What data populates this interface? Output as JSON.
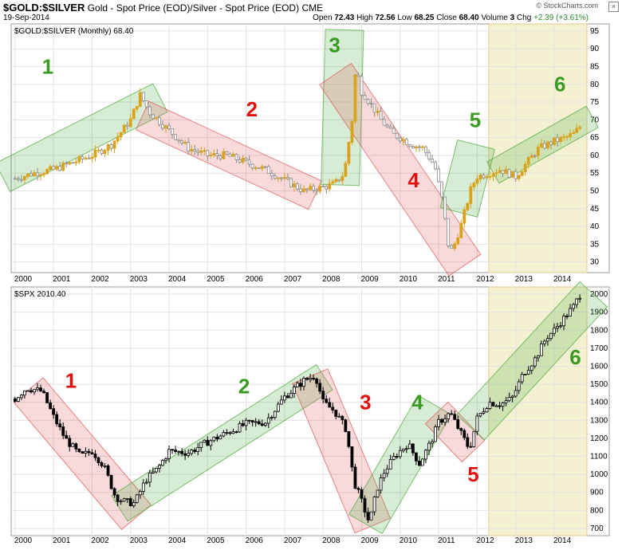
{
  "header": {
    "symbol": "$GOLD:$SILVER",
    "description": "Gold - Spot Price (EOD)/Silver - Spot Price (EOD)",
    "exchange": "CME",
    "date": "19-Sep-2014",
    "open_label": "Open",
    "open": "72.43",
    "high_label": "High",
    "high": "72.56",
    "low_label": "Low",
    "low": "68.25",
    "close_label": "Close",
    "close": "68.40",
    "volume_label": "Volume",
    "volume": "3",
    "chg_label": "Chg",
    "chg": "+2.39 (+3.61%)",
    "brand": "© StockCharts.com",
    "close_glyph": "×"
  },
  "colors": {
    "up_gold": "#d9a21a",
    "down_gray": "#8a8a8a",
    "up_black": "#000000",
    "green_box": "#4aa83a",
    "red_box": "#e05555",
    "highlight": "#f4f1d2",
    "label_green": "#3a9a22",
    "label_red": "#e01010"
  },
  "chart_data": [
    {
      "type": "candlestick",
      "title": "$GOLD:$SILVER (Monthly) 68.40",
      "x_ticks": [
        "2000",
        "2001",
        "2002",
        "2003",
        "2004",
        "2005",
        "2006",
        "2007",
        "2008",
        "2009",
        "2010",
        "2011",
        "2012",
        "2013",
        "2014"
      ],
      "y_ticks": [
        30,
        35,
        40,
        45,
        50,
        55,
        60,
        65,
        70,
        75,
        80,
        85,
        90,
        95
      ],
      "ylim": [
        27,
        97
      ],
      "xlim": [
        1999.9,
        2014.85
      ],
      "series_points": [
        [
          2000.0,
          53.5
        ],
        [
          2000.5,
          55
        ],
        [
          2001.0,
          56
        ],
        [
          2001.5,
          58
        ],
        [
          2002.0,
          60
        ],
        [
          2002.5,
          63
        ],
        [
          2003.0,
          70
        ],
        [
          2003.25,
          77
        ],
        [
          2003.5,
          72
        ],
        [
          2004.0,
          67
        ],
        [
          2004.5,
          62
        ],
        [
          2005.0,
          60
        ],
        [
          2005.5,
          60
        ],
        [
          2006.0,
          58
        ],
        [
          2006.5,
          56
        ],
        [
          2007.0,
          53
        ],
        [
          2007.5,
          50
        ],
        [
          2008.0,
          51
        ],
        [
          2008.3,
          52
        ],
        [
          2008.55,
          55
        ],
        [
          2008.75,
          70
        ],
        [
          2008.85,
          85
        ],
        [
          2009.0,
          78
        ],
        [
          2009.2,
          75
        ],
        [
          2009.5,
          70
        ],
        [
          2009.8,
          66
        ],
        [
          2010.0,
          65
        ],
        [
          2010.3,
          63
        ],
        [
          2010.6,
          62
        ],
        [
          2010.9,
          57
        ],
        [
          2011.1,
          47
        ],
        [
          2011.25,
          35
        ],
        [
          2011.35,
          33
        ],
        [
          2011.6,
          41
        ],
        [
          2011.85,
          51
        ],
        [
          2012.0,
          54
        ],
        [
          2012.3,
          55
        ],
        [
          2012.6,
          56
        ],
        [
          2013.0,
          54
        ],
        [
          2013.3,
          58
        ],
        [
          2013.6,
          62
        ],
        [
          2014.0,
          64
        ],
        [
          2014.3,
          65
        ],
        [
          2014.5,
          66
        ],
        [
          2014.7,
          68.4
        ]
      ],
      "channels": [
        {
          "label": "1",
          "color": "green",
          "from": [
            1999.9,
            55
          ],
          "to": [
            2003.55,
            75
          ],
          "width": 8,
          "label_at": [
            2000.7,
            83
          ]
        },
        {
          "label": "2",
          "color": "red",
          "from": [
            2003.55,
            70
          ],
          "to": [
            2007.55,
            50
          ],
          "width": 8,
          "label_at": [
            2006.0,
            71
          ]
        },
        {
          "label": "3",
          "color": "green",
          "from": [
            2008.45,
            54
          ],
          "to": [
            2008.55,
            93
          ],
          "width": 6,
          "label_at": [
            2008.15,
            89
          ]
        },
        {
          "label": "4",
          "color": "red",
          "from": [
            2008.5,
            80
          ],
          "to": [
            2011.5,
            32
          ],
          "width": 8,
          "label_at": [
            2010.2,
            51
          ]
        },
        {
          "label": "5",
          "color": "green",
          "from": [
            2011.55,
            45
          ],
          "to": [
            2011.95,
            62
          ],
          "width": 9,
          "label_at": [
            2011.8,
            68
          ]
        },
        {
          "label": "6",
          "color": "green",
          "from": [
            2012.55,
            56
          ],
          "to": [
            2014.85,
            70
          ],
          "width": 6,
          "label_at": [
            2014.0,
            78
          ]
        }
      ],
      "highlight_from": 2012.3
    },
    {
      "type": "candlestick",
      "title": "$SPX 2010.40",
      "x_ticks": [
        "2000",
        "2001",
        "2002",
        "2003",
        "2004",
        "2005",
        "2006",
        "2007",
        "2008",
        "2009",
        "2010",
        "2011",
        "2012",
        "2013",
        "2014"
      ],
      "y_ticks": [
        700,
        800,
        900,
        1000,
        1100,
        1200,
        1300,
        1400,
        1500,
        1600,
        1700,
        1800,
        1900,
        2000
      ],
      "ylim": [
        660,
        2040
      ],
      "xlim": [
        1999.9,
        2014.85
      ],
      "series_points": [
        [
          2000.0,
          1420
        ],
        [
          2000.3,
          1480
        ],
        [
          2000.7,
          1460
        ],
        [
          2001.0,
          1320
        ],
        [
          2001.3,
          1200
        ],
        [
          2001.7,
          1100
        ],
        [
          2002.0,
          1130
        ],
        [
          2002.3,
          1050
        ],
        [
          2002.6,
          880
        ],
        [
          2002.8,
          850
        ],
        [
          2003.1,
          840
        ],
        [
          2003.4,
          970
        ],
        [
          2003.7,
          1030
        ],
        [
          2004.0,
          1130
        ],
        [
          2004.5,
          1120
        ],
        [
          2005.0,
          1180
        ],
        [
          2005.5,
          1230
        ],
        [
          2006.0,
          1280
        ],
        [
          2006.5,
          1290
        ],
        [
          2007.0,
          1430
        ],
        [
          2007.5,
          1520
        ],
        [
          2007.8,
          1550
        ],
        [
          2008.0,
          1400
        ],
        [
          2008.3,
          1350
        ],
        [
          2008.6,
          1250
        ],
        [
          2008.8,
          960
        ],
        [
          2009.0,
          850
        ],
        [
          2009.2,
          730
        ],
        [
          2009.4,
          920
        ],
        [
          2009.6,
          1020
        ],
        [
          2009.9,
          1110
        ],
        [
          2010.2,
          1170
        ],
        [
          2010.5,
          1060
        ],
        [
          2010.8,
          1180
        ],
        [
          2011.0,
          1290
        ],
        [
          2011.3,
          1340
        ],
        [
          2011.6,
          1220
        ],
        [
          2011.8,
          1140
        ],
        [
          2012.0,
          1310
        ],
        [
          2012.3,
          1400
        ],
        [
          2012.6,
          1390
        ],
        [
          2012.9,
          1420
        ],
        [
          2013.2,
          1560
        ],
        [
          2013.5,
          1640
        ],
        [
          2013.8,
          1760
        ],
        [
          2014.0,
          1800
        ],
        [
          2014.3,
          1880
        ],
        [
          2014.5,
          1930
        ],
        [
          2014.7,
          2010.4
        ]
      ],
      "channels": [
        {
          "label": "1",
          "color": "red",
          "from": [
            2000.5,
            1430
          ],
          "to": [
            2003.0,
            800
          ],
          "width": 150,
          "label_at": [
            2001.3,
            1480
          ]
        },
        {
          "label": "2",
          "color": "green",
          "from": [
            2003.0,
            850
          ],
          "to": [
            2007.75,
            1500
          ],
          "width": 140,
          "label_at": [
            2005.8,
            1450
          ]
        },
        {
          "label": "3",
          "color": "red",
          "from": [
            2007.75,
            1500
          ],
          "to": [
            2009.2,
            760
          ],
          "width": 150,
          "label_at": [
            2008.95,
            1360
          ]
        },
        {
          "label": "4",
          "color": "green",
          "from": [
            2009.2,
            760
          ],
          "to": [
            2010.8,
            1350
          ],
          "width": 150,
          "label_at": [
            2010.3,
            1360
          ]
        },
        {
          "label": "5",
          "color": "red",
          "from": [
            2011.0,
            1330
          ],
          "to": [
            2011.85,
            1140
          ],
          "width": 120,
          "label_at": [
            2011.75,
            960
          ]
        },
        {
          "label": "6",
          "color": "green",
          "from": [
            2012.0,
            1300
          ],
          "to": [
            2014.85,
            1960
          ],
          "width": 140,
          "label_at": [
            2014.4,
            1610
          ]
        }
      ],
      "highlight_from": 2012.3
    }
  ]
}
